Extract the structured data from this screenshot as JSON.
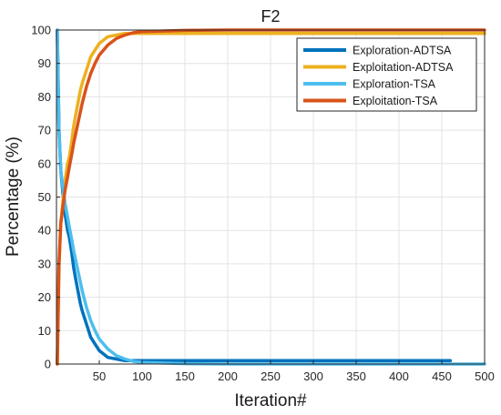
{
  "chart_data": {
    "type": "line",
    "title": "F2",
    "xlabel": "Iteration#",
    "ylabel": "Percentage (%)",
    "xlim": [
      0,
      500
    ],
    "ylim": [
      0,
      100
    ],
    "x_ticks": [
      50,
      100,
      150,
      200,
      250,
      300,
      350,
      400,
      450,
      500
    ],
    "y_ticks": [
      0,
      10,
      20,
      30,
      40,
      50,
      60,
      70,
      80,
      90,
      100
    ],
    "grid": true,
    "legend_position": "top-right",
    "series": [
      {
        "name": "Exploration-ADTSA",
        "color": "#0072BD",
        "x": [
          1,
          3,
          5,
          8,
          10,
          13,
          15,
          18,
          20,
          22,
          25,
          28,
          30,
          35,
          40,
          45,
          50,
          55,
          60,
          70,
          80,
          90,
          100,
          150,
          200,
          250,
          300,
          350,
          400,
          450,
          460
        ],
        "y": [
          100,
          70,
          58,
          50,
          45,
          40,
          38,
          33,
          29,
          26,
          22,
          18,
          16,
          12,
          8,
          6,
          4,
          3,
          2,
          1.5,
          1,
          1,
          1,
          1,
          1,
          1,
          1,
          1,
          1,
          1,
          1
        ]
      },
      {
        "name": "Exploitation-ADTSA",
        "color": "#EDB120",
        "x": [
          1,
          3,
          5,
          8,
          10,
          13,
          15,
          18,
          20,
          22,
          25,
          28,
          30,
          35,
          40,
          45,
          50,
          55,
          60,
          70,
          80,
          90,
          100,
          150,
          200,
          250,
          300,
          350,
          400,
          450,
          500
        ],
        "y": [
          0,
          30,
          42,
          50,
          55,
          60,
          62,
          67,
          71,
          74,
          78,
          82,
          84,
          88,
          92,
          94,
          96,
          97,
          98,
          98.5,
          99,
          99,
          99,
          99,
          99,
          99,
          99,
          99,
          99,
          99,
          99
        ]
      },
      {
        "name": "Exploration-TSA",
        "color": "#4DBEEE",
        "x": [
          1,
          3,
          5,
          8,
          10,
          13,
          15,
          18,
          20,
          25,
          30,
          35,
          40,
          45,
          50,
          60,
          70,
          80,
          90,
          100,
          150,
          200,
          250,
          300,
          350,
          400,
          450,
          500
        ],
        "y": [
          100,
          70,
          58,
          52,
          48,
          44,
          41,
          37,
          34,
          28,
          22,
          17,
          13,
          10,
          7.5,
          4.5,
          2.5,
          1.5,
          0.8,
          0.5,
          0.1,
          0,
          0,
          0,
          0,
          0,
          0,
          0
        ]
      },
      {
        "name": "Exploitation-TSA",
        "color": "#D95319",
        "x": [
          1,
          3,
          5,
          8,
          10,
          13,
          15,
          18,
          20,
          25,
          30,
          35,
          40,
          45,
          50,
          60,
          70,
          80,
          90,
          100,
          150,
          200,
          250,
          300,
          350,
          400,
          450,
          500
        ],
        "y": [
          0,
          30,
          42,
          48,
          52,
          56,
          59,
          63,
          66,
          72,
          78,
          83,
          87,
          90,
          92.5,
          95.5,
          97.5,
          98.5,
          99.2,
          99.5,
          99.9,
          100,
          100,
          100,
          100,
          100,
          100,
          100
        ]
      }
    ]
  }
}
